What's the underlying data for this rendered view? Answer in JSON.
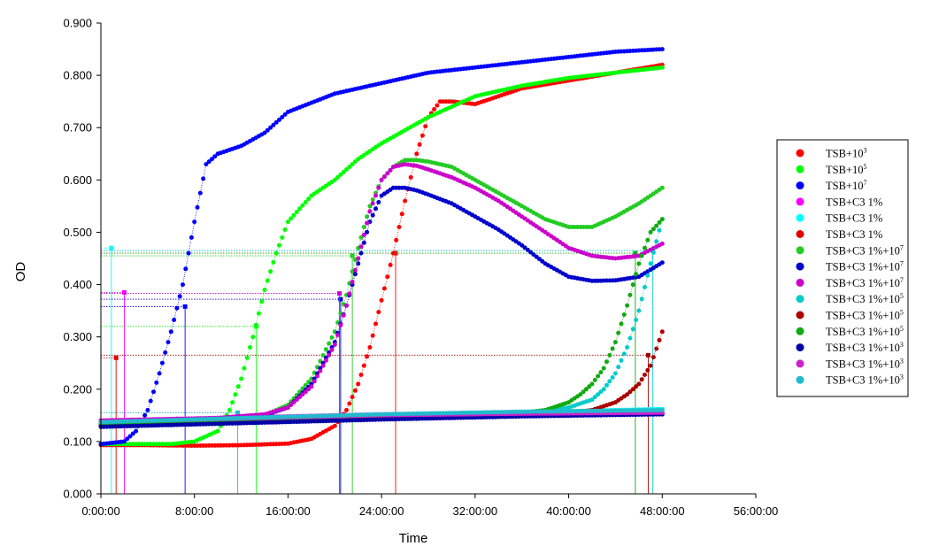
{
  "chart_data": {
    "type": "scatter",
    "title": "",
    "xlabel": "Time",
    "ylabel": "OD",
    "x_unit": "hours",
    "xlim": [
      0,
      56
    ],
    "ylim": [
      0,
      0.9
    ],
    "x_ticks": [
      0,
      8,
      16,
      24,
      32,
      40,
      48,
      56
    ],
    "x_tick_labels": [
      "0:00:00",
      "8:00:00",
      "16:00:00",
      "24:00:00",
      "32:00:00",
      "40:00:00",
      "48:00:00",
      "56:00:00"
    ],
    "y_ticks": [
      0,
      0.1,
      0.2,
      0.3,
      0.4,
      0.5,
      0.6,
      0.7,
      0.8,
      0.9
    ],
    "y_tick_labels": [
      "0.000",
      "0.100",
      "0.200",
      "0.300",
      "0.400",
      "0.500",
      "0.600",
      "0.700",
      "0.800",
      "0.900"
    ],
    "grid": false,
    "legend_position": "right",
    "series": [
      {
        "name": "TSB+10",
        "superscript": "3",
        "color": "#ff0000",
        "x": [
          0,
          4,
          8,
          12,
          16,
          18,
          20,
          21,
          22,
          23,
          24,
          25,
          26,
          27,
          28,
          29,
          30,
          32,
          34,
          36,
          40,
          44,
          48
        ],
        "y": [
          0.093,
          0.093,
          0.092,
          0.093,
          0.096,
          0.105,
          0.13,
          0.16,
          0.21,
          0.28,
          0.37,
          0.46,
          0.56,
          0.65,
          0.72,
          0.75,
          0.75,
          0.745,
          0.76,
          0.775,
          0.79,
          0.805,
          0.82
        ],
        "threshold": {
          "x": 25.2,
          "y": 0.46
        }
      },
      {
        "name": "TSB+10",
        "superscript": "5",
        "color": "#00ff00",
        "x": [
          0,
          6,
          8,
          10,
          11,
          12,
          13,
          14,
          15,
          16,
          18,
          20,
          22,
          24,
          28,
          32,
          36,
          40,
          44,
          48
        ],
        "y": [
          0.095,
          0.095,
          0.1,
          0.12,
          0.16,
          0.22,
          0.3,
          0.39,
          0.46,
          0.52,
          0.57,
          0.6,
          0.64,
          0.67,
          0.72,
          0.76,
          0.78,
          0.795,
          0.805,
          0.815
        ],
        "threshold": {
          "x": 13.3,
          "y": 0.32
        }
      },
      {
        "name": "TSB+10",
        "superscript": "7",
        "color": "#0000ff",
        "x": [
          0,
          2,
          3,
          4,
          5,
          6,
          7,
          8,
          9,
          10,
          12,
          14,
          16,
          20,
          24,
          28,
          32,
          36,
          40,
          44,
          48
        ],
        "y": [
          0.095,
          0.1,
          0.12,
          0.16,
          0.23,
          0.31,
          0.4,
          0.52,
          0.63,
          0.65,
          0.665,
          0.69,
          0.73,
          0.765,
          0.785,
          0.805,
          0.815,
          0.825,
          0.835,
          0.845,
          0.85
        ],
        "threshold": {
          "x": 7.2,
          "y": 0.358
        }
      },
      {
        "name": "TSB+C3 1%",
        "superscript": "",
        "color": "#ff00ff",
        "x": [
          0,
          12,
          24,
          36,
          48
        ],
        "y": [
          0.14,
          0.146,
          0.152,
          0.155,
          0.157
        ],
        "threshold": {
          "x": 2.0,
          "y": 0.385
        }
      },
      {
        "name": "TSB+C3 1%",
        "superscript": "",
        "color": "#00ffff",
        "x": [
          0,
          12,
          24,
          36,
          48
        ],
        "y": [
          0.135,
          0.142,
          0.15,
          0.156,
          0.162
        ],
        "threshold": {
          "x": 0.9,
          "y": 0.47
        }
      },
      {
        "name": "TSB+C3 1%",
        "superscript": "",
        "color": "#e00000",
        "x": [
          0,
          12,
          24,
          36,
          48
        ],
        "y": [
          0.132,
          0.138,
          0.145,
          0.15,
          0.153
        ],
        "threshold": {
          "x": 1.3,
          "y": 0.26
        }
      },
      {
        "name": "TSB+C3 1%+10",
        "superscript": "7",
        "color": "#22cc22",
        "x": [
          0,
          10,
          14,
          16,
          18,
          20,
          21,
          22,
          23,
          24,
          25,
          26,
          27,
          28,
          30,
          32,
          34,
          36,
          38,
          40,
          42,
          44,
          46,
          48
        ],
        "y": [
          0.135,
          0.14,
          0.15,
          0.17,
          0.22,
          0.31,
          0.38,
          0.47,
          0.55,
          0.6,
          0.625,
          0.638,
          0.638,
          0.635,
          0.625,
          0.6,
          0.575,
          0.55,
          0.525,
          0.51,
          0.51,
          0.53,
          0.555,
          0.585
        ],
        "threshold": {
          "x": 21.5,
          "y": 0.455
        }
      },
      {
        "name": "TSB+C3 1%+10",
        "superscript": "7",
        "color": "#0000cc",
        "x": [
          0,
          10,
          14,
          16,
          18,
          20,
          21,
          22,
          23,
          24,
          25,
          26,
          27,
          28,
          30,
          32,
          34,
          36,
          38,
          40,
          42,
          44,
          46,
          48
        ],
        "y": [
          0.13,
          0.14,
          0.15,
          0.165,
          0.21,
          0.29,
          0.36,
          0.44,
          0.52,
          0.57,
          0.585,
          0.585,
          0.58,
          0.572,
          0.555,
          0.53,
          0.505,
          0.475,
          0.44,
          0.415,
          0.407,
          0.408,
          0.415,
          0.442
        ],
        "threshold": {
          "x": 20.5,
          "y": 0.372
        }
      },
      {
        "name": "TSB+C3 1%+10",
        "superscript": "7",
        "color": "#cc00cc",
        "x": [
          0,
          10,
          14,
          16,
          18,
          20,
          21,
          22,
          23,
          24,
          25,
          26,
          27,
          28,
          30,
          32,
          34,
          36,
          38,
          40,
          42,
          44,
          46,
          48
        ],
        "y": [
          0.14,
          0.145,
          0.152,
          0.165,
          0.205,
          0.285,
          0.36,
          0.45,
          0.54,
          0.6,
          0.625,
          0.63,
          0.627,
          0.62,
          0.605,
          0.585,
          0.56,
          0.53,
          0.5,
          0.47,
          0.455,
          0.45,
          0.455,
          0.478
        ],
        "threshold": {
          "x": 20.4,
          "y": 0.383
        }
      },
      {
        "name": "TSB+C3 1%+10",
        "superscript": "5",
        "color": "#00cccc",
        "x": [
          0,
          12,
          24,
          36,
          38,
          40,
          42,
          43,
          44,
          45,
          46,
          47,
          48
        ],
        "y": [
          0.135,
          0.142,
          0.15,
          0.155,
          0.158,
          0.165,
          0.18,
          0.2,
          0.23,
          0.28,
          0.35,
          0.44,
          0.525
        ],
        "threshold": {
          "x": 47.2,
          "y": 0.465
        }
      },
      {
        "name": "TSB+C3 1%+10",
        "superscript": "5",
        "color": "#aa0000",
        "x": [
          0,
          12,
          24,
          36,
          40,
          42,
          44,
          45,
          46,
          47,
          48
        ],
        "y": [
          0.135,
          0.14,
          0.148,
          0.152,
          0.155,
          0.16,
          0.175,
          0.19,
          0.21,
          0.245,
          0.31
        ],
        "threshold": {
          "x": 46.8,
          "y": 0.265
        }
      },
      {
        "name": "TSB+C3 1%+10",
        "superscript": "5",
        "color": "#11aa11",
        "x": [
          0,
          12,
          24,
          36,
          38,
          40,
          41,
          42,
          43,
          44,
          45,
          46,
          47,
          48
        ],
        "y": [
          0.135,
          0.142,
          0.15,
          0.155,
          0.16,
          0.175,
          0.19,
          0.21,
          0.24,
          0.29,
          0.36,
          0.44,
          0.5,
          0.525
        ],
        "threshold": {
          "x": 45.7,
          "y": 0.46
        }
      },
      {
        "name": "TSB+C3 1%+10",
        "superscript": "3",
        "color": "#0000aa",
        "x": [
          0,
          12,
          24,
          36,
          48
        ],
        "y": [
          0.128,
          0.135,
          0.142,
          0.148,
          0.152
        ],
        "threshold": null
      },
      {
        "name": "TSB+C3 1%+10",
        "superscript": "3",
        "color": "#cc22cc",
        "x": [
          0,
          12,
          24,
          36,
          48
        ],
        "y": [
          0.138,
          0.144,
          0.15,
          0.153,
          0.155
        ],
        "threshold": null
      },
      {
        "name": "TSB+C3 1%+10",
        "superscript": "3",
        "color": "#22bbcc",
        "x": [
          0,
          12,
          24,
          36,
          48
        ],
        "y": [
          0.137,
          0.145,
          0.152,
          0.157,
          0.16
        ],
        "threshold": {
          "x": 11.7,
          "y": 0.155
        }
      }
    ]
  }
}
